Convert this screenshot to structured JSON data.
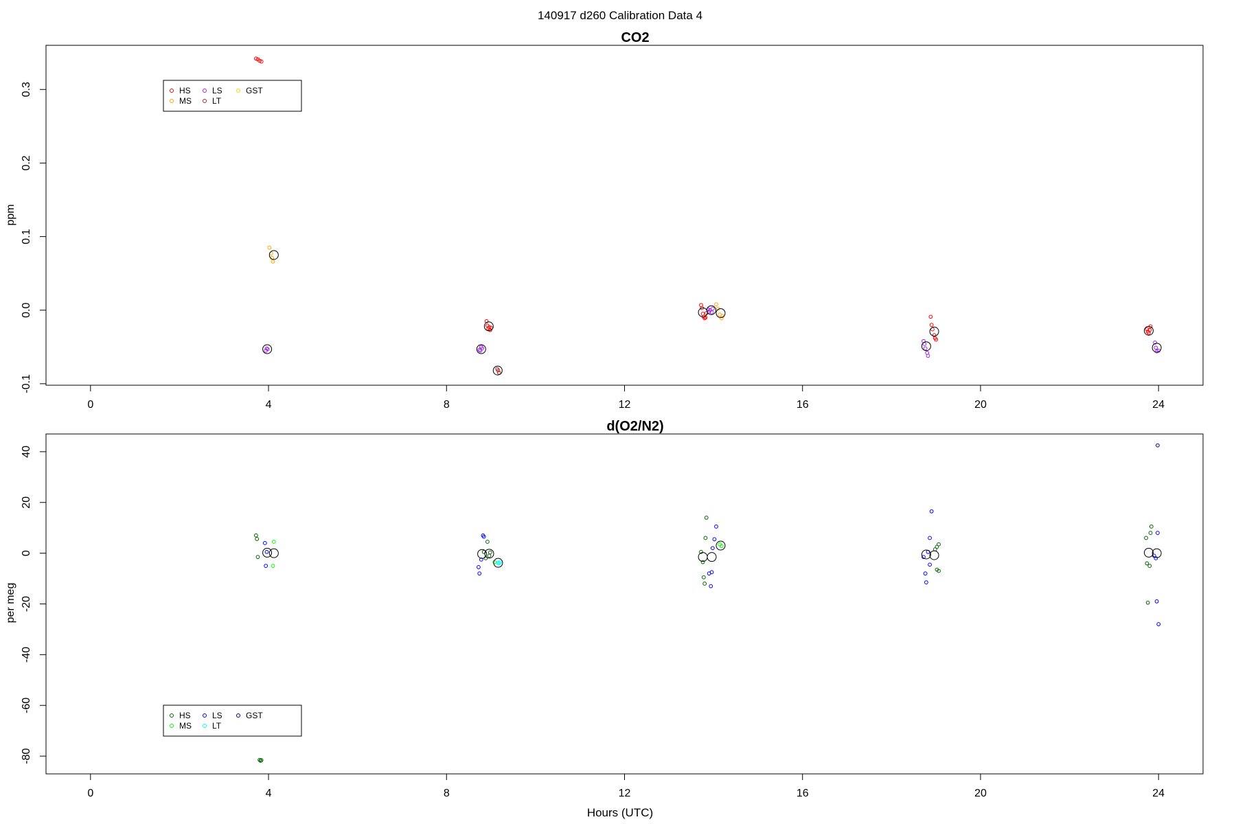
{
  "figure_title": "140917   d260   Calibration Data 4",
  "chart_data": [
    {
      "type": "scatter",
      "title": "CO2",
      "xlabel": "",
      "ylabel": "ppm",
      "xlim": [
        -1.0,
        25.0
      ],
      "ylim": [
        -0.102,
        0.36
      ],
      "xticks": [
        0,
        4,
        8,
        12,
        16,
        20,
        24
      ],
      "yticks": [
        -0.1,
        0.0,
        0.1,
        0.2,
        0.3
      ],
      "ytick_labels": [
        "-0.1",
        "0.0",
        "0.1",
        "0.2",
        "0.3"
      ],
      "legend": {
        "position": "top-left",
        "entries": [
          {
            "name": "HS",
            "color": "#ff0000"
          },
          {
            "name": "MS",
            "color": "#ffa500"
          },
          {
            "name": "LS",
            "color": "#a020f0"
          },
          {
            "name": "LT",
            "color": "#b22222"
          },
          {
            "name": "GST",
            "color": "#ffd700"
          }
        ]
      },
      "series": [
        {
          "name": "HS",
          "color": "#ff0000",
          "points": [
            [
              3.72,
              0.342
            ],
            [
              3.76,
              0.341
            ],
            [
              3.8,
              0.339
            ],
            [
              3.84,
              0.338
            ],
            [
              8.9,
              -0.015
            ],
            [
              8.92,
              -0.021
            ],
            [
              8.94,
              -0.025
            ],
            [
              8.96,
              -0.023
            ],
            [
              8.98,
              -0.027
            ],
            [
              9.0,
              -0.024
            ],
            [
              13.72,
              0.007
            ],
            [
              13.74,
              0.003
            ],
            [
              13.76,
              -0.005
            ],
            [
              13.78,
              -0.009
            ],
            [
              13.8,
              -0.011
            ],
            [
              13.82,
              -0.01
            ],
            [
              13.84,
              -0.004
            ],
            [
              18.88,
              -0.009
            ],
            [
              18.9,
              -0.02
            ],
            [
              18.92,
              -0.026
            ],
            [
              18.96,
              -0.034
            ],
            [
              18.98,
              -0.038
            ],
            [
              19.0,
              -0.04
            ],
            [
              23.74,
              -0.026
            ],
            [
              23.76,
              -0.029
            ],
            [
              23.78,
              -0.031
            ],
            [
              23.8,
              -0.027
            ],
            [
              23.82,
              -0.022
            ]
          ]
        },
        {
          "name": "MS",
          "color": "#ffa500",
          "points": [
            [
              4.02,
              0.085
            ],
            [
              4.06,
              0.077
            ],
            [
              4.08,
              0.071
            ],
            [
              4.1,
              0.066
            ],
            [
              14.06,
              0.008
            ],
            [
              14.1,
              0.002
            ],
            [
              14.14,
              -0.006
            ],
            [
              14.18,
              -0.011
            ],
            [
              14.2,
              -0.008
            ]
          ]
        },
        {
          "name": "LS",
          "color": "#a020f0",
          "points": [
            [
              3.94,
              -0.055
            ],
            [
              3.96,
              -0.052
            ],
            [
              3.98,
              -0.053
            ],
            [
              8.74,
              -0.054
            ],
            [
              8.76,
              -0.055
            ],
            [
              8.78,
              -0.05
            ],
            [
              8.8,
              -0.052
            ],
            [
              13.88,
              0.001
            ],
            [
              13.9,
              -0.002
            ],
            [
              13.92,
              0.0
            ],
            [
              13.96,
              -0.003
            ],
            [
              13.98,
              0.002
            ],
            [
              18.72,
              -0.042
            ],
            [
              18.74,
              -0.046
            ],
            [
              18.76,
              -0.052
            ],
            [
              18.8,
              -0.058
            ],
            [
              18.82,
              -0.062
            ],
            [
              23.92,
              -0.044
            ],
            [
              23.94,
              -0.051
            ],
            [
              23.96,
              -0.056
            ],
            [
              24.0,
              -0.055
            ]
          ]
        },
        {
          "name": "LT",
          "color": "#b22222",
          "points": [
            [
              9.14,
              -0.08
            ],
            [
              9.16,
              -0.082
            ],
            [
              9.18,
              -0.085
            ]
          ]
        },
        {
          "name": "GST",
          "color": "#ffd700",
          "points": []
        }
      ],
      "means": [
        [
          4.12,
          0.075
        ],
        [
          3.97,
          -0.053
        ],
        [
          8.78,
          -0.053
        ],
        [
          8.95,
          -0.022
        ],
        [
          9.15,
          -0.082
        ],
        [
          13.76,
          -0.003
        ],
        [
          13.95,
          0.0
        ],
        [
          14.16,
          -0.004
        ],
        [
          18.78,
          -0.049
        ],
        [
          18.96,
          -0.029
        ],
        [
          23.78,
          -0.028
        ],
        [
          23.96,
          -0.051
        ]
      ]
    },
    {
      "type": "scatter",
      "title": "d(O2/N2)",
      "xlabel": "Hours (UTC)",
      "ylabel": "per meg",
      "xlim": [
        -1.0,
        25.0
      ],
      "ylim": [
        -87.0,
        47.0
      ],
      "xticks": [
        0,
        4,
        8,
        12,
        16,
        20,
        24
      ],
      "yticks": [
        -80,
        -60,
        -40,
        -20,
        0,
        20,
        40
      ],
      "ytick_labels": [
        "-80",
        "-60",
        "-40",
        "-20",
        "0",
        "20",
        "40"
      ],
      "legend": {
        "position": "bottom-left",
        "entries": [
          {
            "name": "HS",
            "color": "#006400"
          },
          {
            "name": "MS",
            "color": "#00ff00"
          },
          {
            "name": "LS",
            "color": "#0000ff"
          },
          {
            "name": "LT",
            "color": "#00ffff"
          },
          {
            "name": "GST",
            "color": "#00008b"
          }
        ]
      },
      "series": [
        {
          "name": "HS",
          "color": "#006400",
          "points": [
            [
              3.72,
              7.0
            ],
            [
              3.74,
              5.6
            ],
            [
              3.76,
              -1.5
            ],
            [
              3.8,
              -81.5
            ],
            [
              3.82,
              -81.8
            ],
            [
              3.84,
              -81.6
            ],
            [
              8.84,
              0.5
            ],
            [
              8.88,
              -2.0
            ],
            [
              8.92,
              4.5
            ],
            [
              8.96,
              -1.0
            ],
            [
              8.98,
              0.3
            ],
            [
              13.72,
              0.5
            ],
            [
              13.76,
              -3.5
            ],
            [
              13.78,
              -9.5
            ],
            [
              13.8,
              -12.0
            ],
            [
              13.82,
              6.0
            ],
            [
              13.84,
              14.0
            ],
            [
              18.98,
              1.5
            ],
            [
              19.02,
              2.5
            ],
            [
              19.06,
              3.5
            ],
            [
              19.02,
              -6.5
            ],
            [
              19.06,
              -7.0
            ],
            [
              23.72,
              6.0
            ],
            [
              23.74,
              -4.0
            ],
            [
              23.76,
              -19.5
            ],
            [
              23.8,
              -5.0
            ],
            [
              23.82,
              8.0
            ],
            [
              23.84,
              10.5
            ]
          ]
        },
        {
          "name": "MS",
          "color": "#00ff00",
          "points": [
            [
              4.12,
              4.5
            ],
            [
              4.1,
              -5.0
            ],
            [
              9.08,
              -3.5
            ],
            [
              14.14,
              3.5
            ],
            [
              14.18,
              2.8
            ]
          ]
        },
        {
          "name": "LS",
          "color": "#0000ff",
          "points": [
            [
              3.92,
              4.0
            ],
            [
              3.94,
              -5.0
            ],
            [
              3.96,
              0.5
            ],
            [
              8.72,
              -5.5
            ],
            [
              8.74,
              -8.0
            ],
            [
              8.78,
              -2.5
            ],
            [
              8.82,
              7.0
            ],
            [
              8.84,
              6.5
            ],
            [
              13.9,
              -8.0
            ],
            [
              13.94,
              -13.0
            ],
            [
              13.98,
              2.0
            ],
            [
              14.02,
              5.5
            ],
            [
              14.06,
              10.5
            ],
            [
              13.96,
              -7.5
            ],
            [
              18.72,
              -1.5
            ],
            [
              18.76,
              -8.0
            ],
            [
              18.78,
              -11.5
            ],
            [
              18.82,
              0.5
            ],
            [
              18.86,
              6.0
            ],
            [
              18.9,
              16.5
            ],
            [
              18.86,
              -4.5
            ],
            [
              23.9,
              -1.0
            ],
            [
              23.94,
              -2.0
            ],
            [
              23.96,
              -19.0
            ],
            [
              24.0,
              -28.0
            ],
            [
              23.98,
              8.0
            ]
          ]
        },
        {
          "name": "LT",
          "color": "#00ffff",
          "points": [
            [
              9.16,
              -3.8
            ],
            [
              9.18,
              -4.0
            ],
            [
              9.2,
              -3.5
            ]
          ]
        },
        {
          "name": "GST",
          "color": "#00008b",
          "points": [
            [
              23.98,
              42.5
            ]
          ]
        }
      ],
      "means": [
        [
          3.97,
          0.2
        ],
        [
          4.12,
          0.0
        ],
        [
          8.8,
          -0.3
        ],
        [
          8.96,
          -0.2
        ],
        [
          9.16,
          -3.8
        ],
        [
          13.76,
          -1.5
        ],
        [
          13.96,
          -1.5
        ],
        [
          14.16,
          3.0
        ],
        [
          18.78,
          -0.5
        ],
        [
          18.96,
          -0.8
        ],
        [
          23.78,
          0.2
        ],
        [
          23.96,
          0.0
        ]
      ]
    }
  ]
}
